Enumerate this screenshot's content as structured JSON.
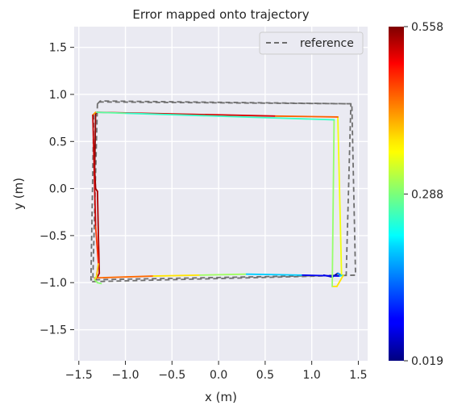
{
  "chart_data": {
    "type": "line",
    "title": "Error mapped onto trajectory",
    "xlabel": "x (m)",
    "ylabel": "y (m)",
    "xlim": [
      -1.55,
      1.6
    ],
    "ylim": [
      -1.83,
      1.72
    ],
    "xticks": [
      -1.5,
      -1.0,
      -0.5,
      0.0,
      0.5,
      1.0,
      1.5
    ],
    "xtick_labels": [
      "−1.5",
      "−1.0",
      "−0.5",
      "0.0",
      "0.5",
      "1.0",
      "1.5"
    ],
    "yticks": [
      -1.5,
      -1.0,
      -0.5,
      0.0,
      0.5,
      1.0,
      1.5
    ],
    "ytick_labels": [
      "−1.5",
      "−1.0",
      "−0.5",
      "0.0",
      "0.5",
      "1.0",
      "1.5"
    ],
    "grid": true,
    "legend": {
      "placement": "top-right",
      "entries": [
        {
          "label": "reference",
          "style": "dashed",
          "color": "#6e6e6e"
        }
      ]
    },
    "colorbar": {
      "colormap": "jet",
      "min": 0.019,
      "max": 0.558,
      "ticks": [
        0.019,
        0.288,
        0.558
      ],
      "tick_labels": [
        "0.019",
        "0.288",
        "0.558"
      ]
    },
    "reference_path": {
      "name": "reference",
      "x": [
        -1.3,
        -1.27,
        1.43,
        1.47,
        -1.35,
        -1.3,
        1.42,
        1.37,
        -1.37,
        -1.34
      ],
      "y": [
        0.9,
        0.93,
        0.9,
        -0.92,
        -0.99,
        0.92,
        0.9,
        -0.92,
        -0.97,
        0.8
      ]
    },
    "estimate_path": {
      "x": [
        1.13,
        1.22,
        1.28,
        1.32,
        1.28,
        0.6,
        -1.3,
        -1.32,
        -1.33,
        -1.32,
        -1.3,
        -1.29,
        -1.28,
        -1.3,
        -1.32,
        -1.33,
        -0.7,
        -0.2,
        0.3,
        0.9,
        1.3,
        1.34,
        1.27,
        1.22,
        1.24,
        -1.0,
        -1.32,
        -1.35,
        -1.32,
        -1.29,
        -1.31,
        -1.33,
        -1.3,
        -1.26
      ],
      "y": [
        -0.92,
        -0.94,
        -0.9,
        -0.92,
        0.76,
        0.77,
        0.81,
        0.8,
        0.2,
        0.0,
        -0.03,
        -0.5,
        -0.9,
        -0.94,
        -0.96,
        -0.95,
        -0.93,
        -0.92,
        -0.91,
        -0.92,
        -0.93,
        -0.92,
        -1.04,
        -1.04,
        0.73,
        0.8,
        0.81,
        0.78,
        -0.4,
        -0.8,
        -0.93,
        -0.97,
        -1.0,
        -1.01
      ],
      "error": [
        0.06,
        0.04,
        0.02,
        0.3,
        0.4,
        0.48,
        0.54,
        0.55,
        0.55,
        0.55,
        0.54,
        0.53,
        0.54,
        0.53,
        0.49,
        0.47,
        0.4,
        0.34,
        0.27,
        0.12,
        0.04,
        0.36,
        0.38,
        0.36,
        0.24,
        0.26,
        0.28,
        0.54,
        0.5,
        0.43,
        0.35,
        0.31,
        0.29,
        0.3
      ]
    }
  }
}
